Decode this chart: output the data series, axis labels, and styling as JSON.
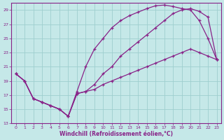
{
  "xlabel": "Windchill (Refroidissement éolien,°C)",
  "background_color": "#c5e8e8",
  "grid_color": "#9ecece",
  "line_color": "#882288",
  "xlim": [
    -0.5,
    23.5
  ],
  "ylim": [
    13,
    30
  ],
  "yticks": [
    13,
    15,
    17,
    19,
    21,
    23,
    25,
    27,
    29
  ],
  "xticks": [
    0,
    1,
    2,
    3,
    4,
    5,
    6,
    7,
    8,
    9,
    10,
    11,
    12,
    13,
    14,
    15,
    16,
    17,
    18,
    19,
    20,
    21,
    22,
    23
  ],
  "line1_x": [
    0,
    1,
    2,
    3,
    4,
    5,
    6,
    7,
    8,
    9,
    10,
    11,
    12,
    13,
    14,
    15,
    16,
    17,
    18,
    19,
    20,
    21,
    22,
    23
  ],
  "line1_y": [
    20.0,
    19.0,
    16.5,
    16.0,
    15.5,
    15.0,
    14.0,
    17.5,
    21.0,
    23.5,
    25.0,
    26.5,
    27.5,
    28.2,
    28.7,
    29.2,
    29.6,
    29.7,
    29.5,
    29.2,
    29.0,
    27.5,
    25.0,
    22.0
  ],
  "line2_x": [
    0,
    1,
    2,
    3,
    4,
    5,
    6,
    7,
    8,
    9,
    10,
    11,
    12,
    13,
    14,
    15,
    16,
    17,
    18,
    19,
    20,
    21,
    22,
    23
  ],
  "line2_y": [
    20.0,
    19.0,
    16.5,
    16.0,
    15.5,
    15.0,
    14.0,
    17.2,
    17.5,
    18.5,
    20.0,
    21.0,
    22.5,
    23.5,
    24.5,
    25.5,
    26.5,
    27.5,
    28.5,
    29.0,
    29.2,
    28.8,
    28.0,
    22.0
  ],
  "line3_x": [
    0,
    1,
    2,
    3,
    4,
    5,
    6,
    7,
    8,
    9,
    10,
    11,
    12,
    13,
    14,
    15,
    16,
    17,
    18,
    19,
    20,
    21,
    22,
    23
  ],
  "line3_y": [
    20.0,
    19.0,
    16.5,
    16.0,
    15.5,
    15.0,
    14.0,
    17.2,
    17.5,
    17.8,
    18.5,
    19.0,
    19.5,
    20.0,
    20.5,
    21.0,
    21.5,
    22.0,
    22.5,
    23.0,
    23.5,
    23.0,
    22.5,
    22.0
  ]
}
